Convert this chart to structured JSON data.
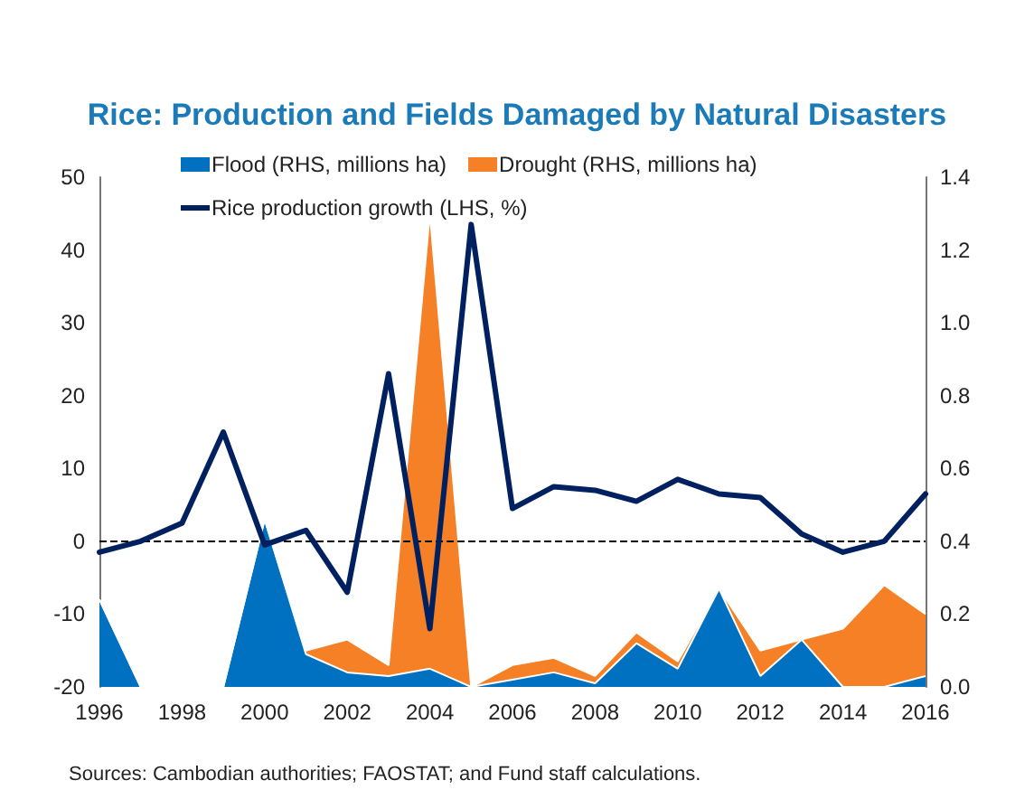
{
  "chart_data": {
    "type": "line",
    "title": "Rice: Production and Fields Damaged by Natural Disasters",
    "categories": [
      "1996",
      null,
      "1998",
      null,
      "2000",
      null,
      "2002",
      null,
      "2004",
      null,
      "2006",
      null,
      "2008",
      null,
      "2010",
      null,
      "2012",
      null,
      "2014",
      null,
      "2016"
    ],
    "series": [
      {
        "name": "Flood (RHS, millions ha)",
        "type": "area",
        "axis": "y2",
        "color": "#0070c0",
        "values": [
          0.24,
          0,
          0,
          0,
          0.46,
          0.09,
          0.04,
          0.03,
          0.05,
          0,
          0.02,
          0.04,
          0.01,
          0.12,
          0.05,
          0.27,
          0.03,
          0.13,
          0,
          0,
          0.03
        ]
      },
      {
        "name": "Drought (RHS, millions ha)",
        "type": "area",
        "axis": "y2",
        "color": "#f58025",
        "values": [
          0,
          0,
          0,
          0,
          0,
          0.01,
          0.09,
          0.03,
          1.25,
          0,
          0.04,
          0.04,
          0.02,
          0.03,
          0.02,
          0,
          0.07,
          0,
          0.16,
          0.28,
          0.17
        ]
      },
      {
        "name": "Rice production growth (LHS, %)",
        "color": "#002060",
        "values": [
          -1.5,
          0,
          2.5,
          15,
          -0.5,
          1.5,
          -7,
          23,
          -12,
          43.5,
          4.5,
          7.5,
          7,
          5.5,
          8.5,
          6.5,
          6,
          1,
          -1.5,
          0,
          6.5
        ]
      }
    ],
    "stacked": true,
    "ylim": [
      -20,
      50
    ],
    "yticks": [
      -20,
      -10,
      0,
      10,
      20,
      30,
      40,
      50
    ],
    "y2lim": [
      0,
      1.4
    ],
    "y2ticks": [
      {
        "value": 0,
        "label": "0.0"
      },
      {
        "value": 0.2,
        "label": "0.2"
      },
      {
        "value": 0.4,
        "label": "0.4"
      },
      {
        "value": 0.6,
        "label": "0.6"
      },
      {
        "value": 0.8,
        "label": "0.8"
      },
      {
        "value": 1,
        "label": "1.0"
      },
      {
        "value": 1.2,
        "label": "1.2"
      },
      {
        "value": 1.4,
        "label": "1.4"
      }
    ],
    "ref_lines": [
      {
        "axis": "y",
        "value": 0,
        "color": "#000000",
        "line_style": "dashed"
      }
    ],
    "legend": "top",
    "grid": false,
    "marker": "none",
    "annotations": [
      "Sources: Cambodian authorities; FAOSTAT; and Fund staff calculations."
    ]
  }
}
